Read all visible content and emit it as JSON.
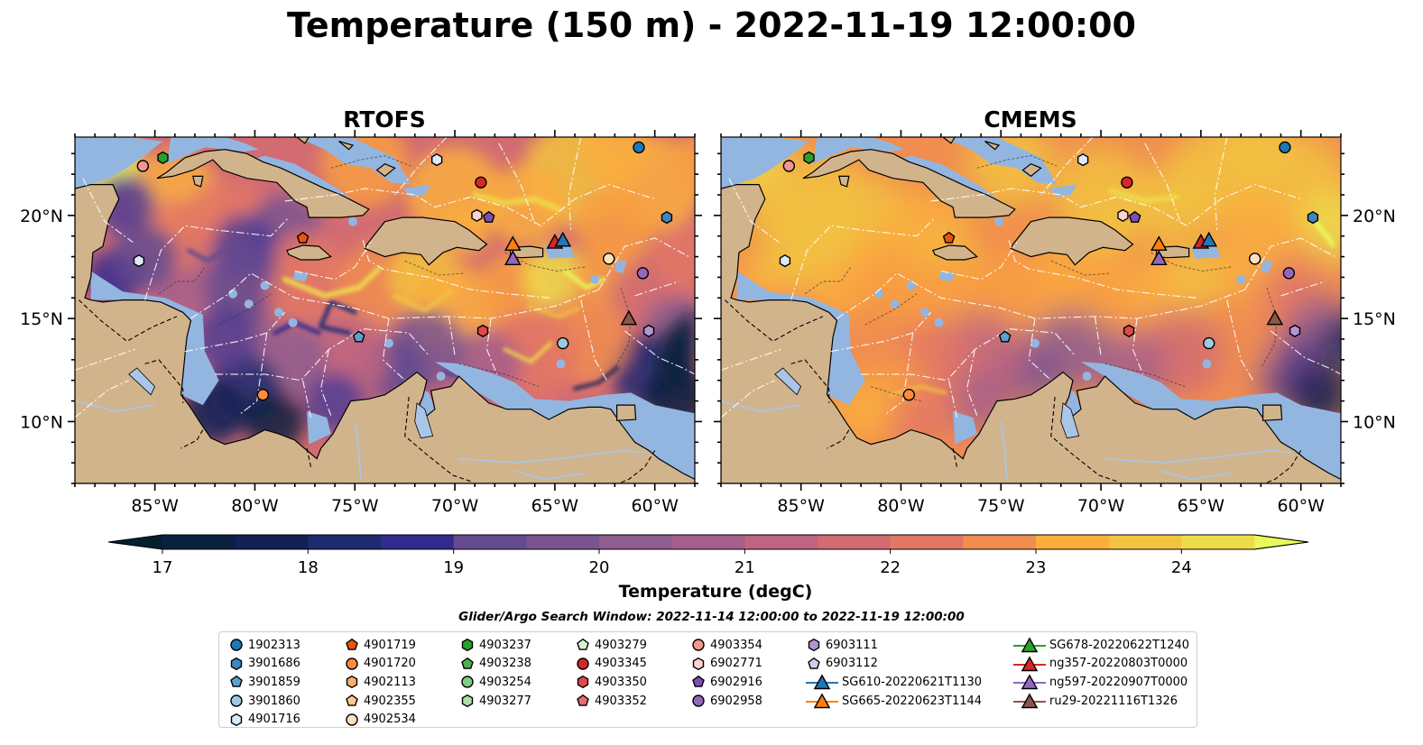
{
  "title": "Temperature (150 m) - 2022-11-19 12:00:00",
  "panels": [
    {
      "name": "RTOFS",
      "variant": "rtofs"
    },
    {
      "name": "CMEMS",
      "variant": "cmems"
    }
  ],
  "axes": {
    "x_ticks": [
      "85°W",
      "80°W",
      "75°W",
      "70°W",
      "65°W",
      "60°W"
    ],
    "x_tick_values": [
      -85,
      -80,
      -75,
      -70,
      -65,
      -60
    ],
    "y_ticks": [
      "20°N",
      "15°N",
      "10°N"
    ],
    "y_tick_values": [
      20,
      15,
      10
    ],
    "lon_range": [
      -89,
      -58
    ],
    "lat_range": [
      7,
      23.8
    ]
  },
  "colorbar": {
    "label": "Temperature (degC)",
    "tick_labels": [
      "17",
      "18",
      "19",
      "20",
      "21",
      "22",
      "23",
      "24"
    ],
    "range": [
      16.5,
      24.5
    ],
    "colors": [
      "#03202e",
      "#09213f",
      "#132055",
      "#1d2b71",
      "#33298f",
      "#513d93",
      "#644b8f",
      "#7a5490",
      "#8f5d8f",
      "#a65f8a",
      "#bd6581",
      "#d26c72",
      "#e37765",
      "#f08d4f",
      "#f89d42",
      "#faae3e",
      "#f2c240",
      "#eedb4b",
      "#e8fa5b"
    ],
    "extend_colors": {
      "low": "#03202e",
      "high": "#e8fa5b"
    }
  },
  "map_colors": {
    "land": "#d2b48c",
    "shelf": "#93b6e1",
    "river": "#a9c6e8"
  },
  "legend": {
    "caption": "Glider/Argo Search Window: 2022-11-14 12:00:00 to 2022-11-19 12:00:00",
    "columns": [
      [
        {
          "label": "1902313",
          "marker": "circle",
          "color": "#1f77b4"
        },
        {
          "label": "3901686",
          "marker": "hexagon",
          "color": "#3e87c0"
        },
        {
          "label": "3901859",
          "marker": "pentagon",
          "color": "#5fa0d0"
        },
        {
          "label": "3901860",
          "marker": "circle",
          "color": "#9ecae1"
        },
        {
          "label": "4901716",
          "marker": "hexagon",
          "color": "#dbebf7"
        }
      ],
      [
        {
          "label": "4901719",
          "marker": "pentagon",
          "color": "#e6550d"
        },
        {
          "label": "4901720",
          "marker": "circle",
          "color": "#fd8d3c"
        },
        {
          "label": "4902113",
          "marker": "hexagon",
          "color": "#fdae6b"
        },
        {
          "label": "4902355",
          "marker": "pentagon",
          "color": "#fdc98f"
        },
        {
          "label": "4902534",
          "marker": "circle",
          "color": "#fde2c0"
        }
      ],
      [
        {
          "label": "4903237",
          "marker": "hexagon",
          "color": "#2ca02c"
        },
        {
          "label": "4903238",
          "marker": "pentagon",
          "color": "#4fb14f"
        },
        {
          "label": "4903254",
          "marker": "circle",
          "color": "#7fcf7f"
        },
        {
          "label": "4903277",
          "marker": "hexagon",
          "color": "#a9e0a3"
        }
      ],
      [
        {
          "label": "4903279",
          "marker": "pentagon",
          "color": "#d7f5d0"
        },
        {
          "label": "4903345",
          "marker": "circle",
          "color": "#d62728"
        },
        {
          "label": "4903350",
          "marker": "hexagon",
          "color": "#e0474a"
        },
        {
          "label": "4903352",
          "marker": "pentagon",
          "color": "#ec6a6a"
        }
      ],
      [
        {
          "label": "4903354",
          "marker": "circle",
          "color": "#f4958e"
        },
        {
          "label": "6902771",
          "marker": "hexagon",
          "color": "#fbd3d0"
        },
        {
          "label": "6902916",
          "marker": "pentagon",
          "color": "#7d4eb5"
        },
        {
          "label": "6902958",
          "marker": "circle",
          "color": "#9467bd"
        }
      ],
      [
        {
          "label": "6903111",
          "marker": "hexagon",
          "color": "#b395d4"
        },
        {
          "label": "6903112",
          "marker": "pentagon",
          "color": "#d8c8ec"
        },
        {
          "label": "SG610-20220621T1130",
          "marker": "triangle-line",
          "color": "#1f77b4"
        },
        {
          "label": "SG665-20220623T1144",
          "marker": "triangle-line",
          "color": "#ff7f0e"
        }
      ],
      [
        {
          "label": "SG678-20220622T1240",
          "marker": "triangle-line",
          "color": "#2ca02c"
        },
        {
          "label": "ng357-20220803T0000",
          "marker": "triangle-line",
          "color": "#d62728"
        },
        {
          "label": "ng597-20220907T0000",
          "marker": "triangle-line",
          "color": "#9467bd"
        },
        {
          "label": "ru29-20221116T1326",
          "marker": "triangle-line",
          "color": "#8c564b"
        }
      ]
    ]
  },
  "platforms": [
    {
      "id": "4903237",
      "lon": -84.6,
      "lat": 22.8
    },
    {
      "id": "4903354",
      "lon": -85.6,
      "lat": 22.4
    },
    {
      "id": "1902313",
      "lon": -60.8,
      "lat": 23.3
    },
    {
      "id": "4901716",
      "lon": -70.9,
      "lat": 22.7
    },
    {
      "id": "4903345",
      "lon": -68.7,
      "lat": 21.6
    },
    {
      "id": "6902771",
      "lon": -68.9,
      "lat": 20.0
    },
    {
      "id": "6902916",
      "lon": -68.3,
      "lat": 19.9
    },
    {
      "id": "3901686",
      "lon": -59.4,
      "lat": 19.9
    },
    {
      "id": "4901719",
      "lon": -77.6,
      "lat": 18.9
    },
    {
      "id": "4901716",
      "lon": -85.8,
      "lat": 17.8
    },
    {
      "id": "4902534",
      "lon": -62.3,
      "lat": 17.9
    },
    {
      "id": "6902958",
      "lon": -60.6,
      "lat": 17.2
    },
    {
      "id": "3901859",
      "lon": -74.8,
      "lat": 14.1
    },
    {
      "id": "4903350",
      "lon": -68.6,
      "lat": 14.4
    },
    {
      "id": "3901860",
      "lon": -64.6,
      "lat": 13.8
    },
    {
      "id": "6903111",
      "lon": -60.3,
      "lat": 14.4
    },
    {
      "id": "4901720",
      "lon": -79.6,
      "lat": 11.3
    },
    {
      "id": "SG665-20220623T1144",
      "lon": -67.1,
      "lat": 18.6
    },
    {
      "id": "ng597-20220907T0000",
      "lon": -67.1,
      "lat": 17.9
    },
    {
      "id": "ng357-20220803T0000",
      "lon": -65.0,
      "lat": 18.7
    },
    {
      "id": "SG610-20220621T1130",
      "lon": -64.6,
      "lat": 18.8
    },
    {
      "id": "ru29-20221116T1326",
      "lon": -61.3,
      "lat": 15.0
    }
  ]
}
